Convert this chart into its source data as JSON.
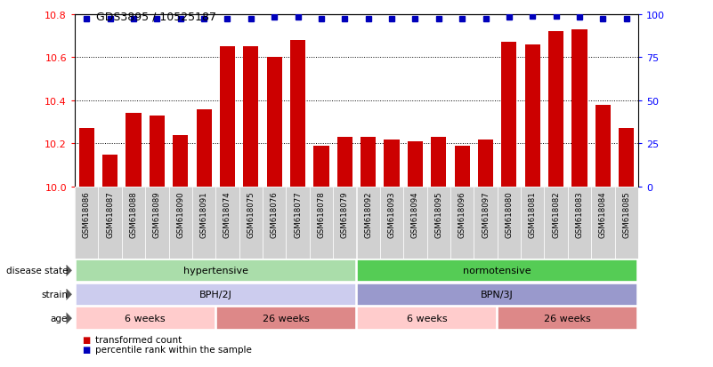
{
  "title": "GDS3895 / 10525187",
  "samples": [
    "GSM618086",
    "GSM618087",
    "GSM618088",
    "GSM618089",
    "GSM618090",
    "GSM618091",
    "GSM618074",
    "GSM618075",
    "GSM618076",
    "GSM618077",
    "GSM618078",
    "GSM618079",
    "GSM618092",
    "GSM618093",
    "GSM618094",
    "GSM618095",
    "GSM618096",
    "GSM618097",
    "GSM618080",
    "GSM618081",
    "GSM618082",
    "GSM618083",
    "GSM618084",
    "GSM618085"
  ],
  "bar_values": [
    10.27,
    10.15,
    10.34,
    10.33,
    10.24,
    10.36,
    10.65,
    10.65,
    10.6,
    10.68,
    10.19,
    10.23,
    10.23,
    10.22,
    10.21,
    10.23,
    10.19,
    10.22,
    10.67,
    10.66,
    10.72,
    10.73,
    10.38,
    10.27
  ],
  "percentile_values": [
    97,
    97,
    97,
    97,
    97,
    97,
    97,
    97,
    98,
    98,
    97,
    97,
    97,
    97,
    97,
    97,
    97,
    97,
    98,
    99,
    99,
    98,
    97,
    97
  ],
  "ylim_left": [
    10.0,
    10.8
  ],
  "ylim_right": [
    0,
    100
  ],
  "yticks_left": [
    10.0,
    10.2,
    10.4,
    10.6,
    10.8
  ],
  "yticks_right": [
    0,
    25,
    50,
    75,
    100
  ],
  "bar_color": "#cc0000",
  "percentile_color": "#0000bb",
  "disease_colors": [
    "#aaddaa",
    "#55cc55"
  ],
  "disease_labels": [
    "hypertensive",
    "normotensive"
  ],
  "disease_ranges": [
    [
      0,
      12
    ],
    [
      12,
      24
    ]
  ],
  "strain_colors": [
    "#ccccee",
    "#9999cc"
  ],
  "strain_labels": [
    "BPH/2J",
    "BPN/3J"
  ],
  "strain_ranges": [
    [
      0,
      12
    ],
    [
      12,
      24
    ]
  ],
  "age_colors": [
    "#ffcccc",
    "#dd8888",
    "#ffcccc",
    "#dd8888"
  ],
  "age_labels": [
    "6 weeks",
    "26 weeks",
    "6 weeks",
    "26 weeks"
  ],
  "age_ranges": [
    [
      0,
      6
    ],
    [
      6,
      12
    ],
    [
      12,
      18
    ],
    [
      18,
      24
    ]
  ],
  "row_labels": [
    "disease state",
    "strain",
    "age"
  ],
  "legend_bar": "transformed count",
  "legend_pct": "percentile rank within the sample"
}
